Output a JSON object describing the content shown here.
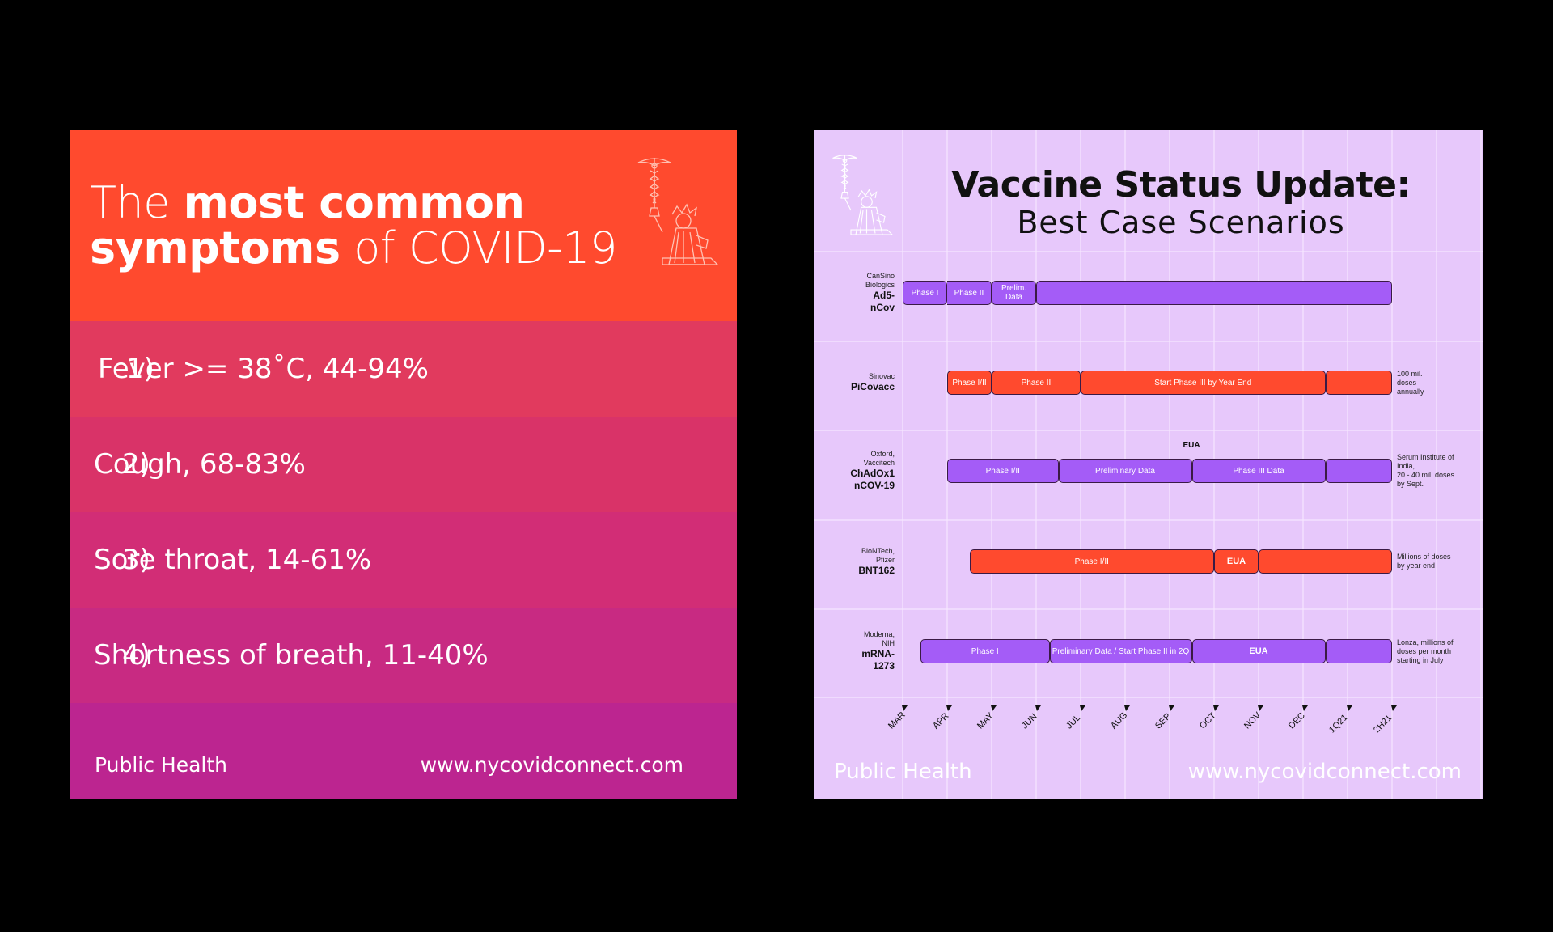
{
  "card1": {
    "title_light1": "The",
    "title_bold1": "most common",
    "title_bold2": "symptoms",
    "title_light2": "of COVID-19",
    "symptoms": [
      {
        "number": "1)",
        "text": "Fever >= 38˚C, 44-94%"
      },
      {
        "number": "2)",
        "text": "Cough, 68-83%"
      },
      {
        "number": "3)",
        "text": "Sore throat, 14-61%"
      },
      {
        "number": "4)",
        "text": "Shortness of breath, 11-40%"
      }
    ],
    "footer_left": "Public Health",
    "footer_right": "www.nycovidconnect.com",
    "colors": {
      "header": "#ff4a2e",
      "row1": "#e13a5e",
      "row2": "#d93368",
      "row3": "#d22d76",
      "row4": "#c82a82",
      "footer": "#bc2590"
    },
    "icon": "statue-of-liberty-caduceus-icon"
  },
  "card2": {
    "title": "Vaccine Status Update:",
    "subtitle": "Best Case Scenarios",
    "months": [
      "MAR",
      "APR",
      "MAY",
      "JUN",
      "JUL",
      "AUG",
      "SEP",
      "OCT",
      "NOV",
      "DEC",
      "1Q21",
      "2H21"
    ],
    "vaccines": [
      {
        "org": [
          "CanSino",
          "Biologics"
        ],
        "name": [
          "Ad5-",
          "nCov"
        ],
        "phases": [
          {
            "label": "Phase I",
            "start": 0,
            "end": 1,
            "color": "purple"
          },
          {
            "label": "Phase II",
            "start": 1,
            "end": 2,
            "color": "purple",
            "merged": true
          },
          {
            "label": "Prelim. Data",
            "start": 2,
            "end": 3,
            "color": "purple"
          },
          {
            "label": "",
            "start": 3,
            "end": 11,
            "color": "purple"
          }
        ],
        "note": []
      },
      {
        "org": [
          "Sinovac"
        ],
        "name": [
          "PiCovacc"
        ],
        "phases": [
          {
            "label": "Phase I/II",
            "start": 1,
            "end": 2,
            "color": "red"
          },
          {
            "label": "Phase II",
            "start": 2,
            "end": 4,
            "color": "red"
          },
          {
            "label": "Start Phase III by Year End",
            "start": 4,
            "end": 9.5,
            "color": "red"
          },
          {
            "label": "",
            "start": 9.5,
            "end": 11,
            "color": "red"
          }
        ],
        "note": [
          "100 mil.",
          "doses",
          "annually"
        ]
      },
      {
        "org": [
          "Oxford,",
          "Vaccitech"
        ],
        "name": [
          "ChAdOx1",
          "nCOV-19"
        ],
        "eua": "EUA",
        "phases": [
          {
            "label": "Phase I/II",
            "start": 1,
            "end": 3.5,
            "color": "purple"
          },
          {
            "label": "Preliminary Data",
            "start": 3.5,
            "end": 6.5,
            "color": "purple"
          },
          {
            "label": "Phase III Data",
            "start": 6.5,
            "end": 9.5,
            "color": "purple"
          },
          {
            "label": "",
            "start": 9.5,
            "end": 11,
            "color": "purple"
          }
        ],
        "note": [
          "Serum Institute of",
          "India,",
          "20 - 40 mil. doses",
          "by Sept."
        ]
      },
      {
        "org": [
          "BioNTech,",
          "Pfizer"
        ],
        "name": [
          "BNT162"
        ],
        "phases": [
          {
            "label": "Phase I/II",
            "start": 1.5,
            "end": 7,
            "color": "red"
          },
          {
            "label": "EUA",
            "start": 7,
            "end": 8,
            "color": "red",
            "bold": true
          },
          {
            "label": "",
            "start": 8,
            "end": 11,
            "color": "red"
          }
        ],
        "note": [
          "Millions of doses",
          "by year end"
        ]
      },
      {
        "org": [
          "Moderna;",
          "NIH"
        ],
        "name": [
          "mRNA-",
          "1273"
        ],
        "phases": [
          {
            "label": "Phase I",
            "start": 0.4,
            "end": 3.3,
            "color": "purple"
          },
          {
            "label": "Preliminary Data / Start Phase II in 2Q",
            "start": 3.3,
            "end": 6.5,
            "color": "purple"
          },
          {
            "label": "EUA",
            "start": 6.5,
            "end": 9.5,
            "color": "purple",
            "bold": true
          },
          {
            "label": "",
            "start": 9.5,
            "end": 11,
            "color": "purple"
          }
        ],
        "note": [
          "Lonza, millions of",
          "doses per month",
          "starting in July"
        ]
      }
    ],
    "footer_left": "Public Health",
    "footer_right": "www.nycovidconnect.com",
    "colors": {
      "background": "#e7c8fb",
      "purple": "#a45cf7",
      "red": "#ff4a2e"
    },
    "icon": "statue-of-liberty-caduceus-icon"
  }
}
